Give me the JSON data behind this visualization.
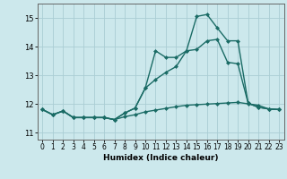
{
  "title": "",
  "xlabel": "Humidex (Indice chaleur)",
  "ylabel": "",
  "xlim": [
    -0.5,
    23.5
  ],
  "ylim": [
    10.75,
    15.5
  ],
  "yticks": [
    11,
    12,
    13,
    14,
    15
  ],
  "xticks": [
    0,
    1,
    2,
    3,
    4,
    5,
    6,
    7,
    8,
    9,
    10,
    11,
    12,
    13,
    14,
    15,
    16,
    17,
    18,
    19,
    20,
    21,
    22,
    23
  ],
  "background_color": "#cce8ec",
  "grid_color": "#aacdd4",
  "line_color": "#1a6b65",
  "line1_x": [
    0,
    1,
    2,
    3,
    4,
    5,
    6,
    7,
    8,
    9,
    10,
    11,
    12,
    13,
    14,
    15,
    16,
    17,
    18,
    19,
    20,
    21,
    22,
    23
  ],
  "line1_y": [
    11.8,
    11.62,
    11.75,
    11.52,
    11.52,
    11.52,
    11.52,
    11.45,
    11.55,
    11.62,
    11.72,
    11.78,
    11.84,
    11.9,
    11.95,
    11.97,
    11.99,
    12.01,
    12.03,
    12.05,
    12.0,
    11.95,
    11.82,
    11.8
  ],
  "line2_x": [
    0,
    1,
    2,
    3,
    4,
    5,
    6,
    7,
    8,
    9,
    10,
    11,
    12,
    13,
    14,
    15,
    16,
    17,
    18,
    19,
    20,
    21,
    22,
    23
  ],
  "line2_y": [
    11.8,
    11.62,
    11.75,
    11.52,
    11.52,
    11.52,
    11.52,
    11.45,
    11.68,
    11.85,
    12.55,
    12.85,
    13.1,
    13.3,
    13.85,
    13.9,
    14.2,
    14.25,
    13.45,
    13.4,
    12.02,
    11.88,
    11.82,
    11.8
  ],
  "line3_x": [
    0,
    1,
    2,
    3,
    4,
    5,
    6,
    7,
    8,
    9,
    10,
    11,
    12,
    13,
    14,
    15,
    16,
    17,
    18,
    19,
    20,
    21,
    22,
    23
  ],
  "line3_y": [
    11.8,
    11.62,
    11.75,
    11.52,
    11.52,
    11.52,
    11.52,
    11.45,
    11.68,
    11.85,
    12.55,
    13.85,
    13.62,
    13.62,
    13.85,
    15.05,
    15.12,
    14.65,
    14.2,
    14.2,
    12.02,
    11.88,
    11.82,
    11.8
  ],
  "marker_size": 2.5,
  "line_width": 1.0
}
